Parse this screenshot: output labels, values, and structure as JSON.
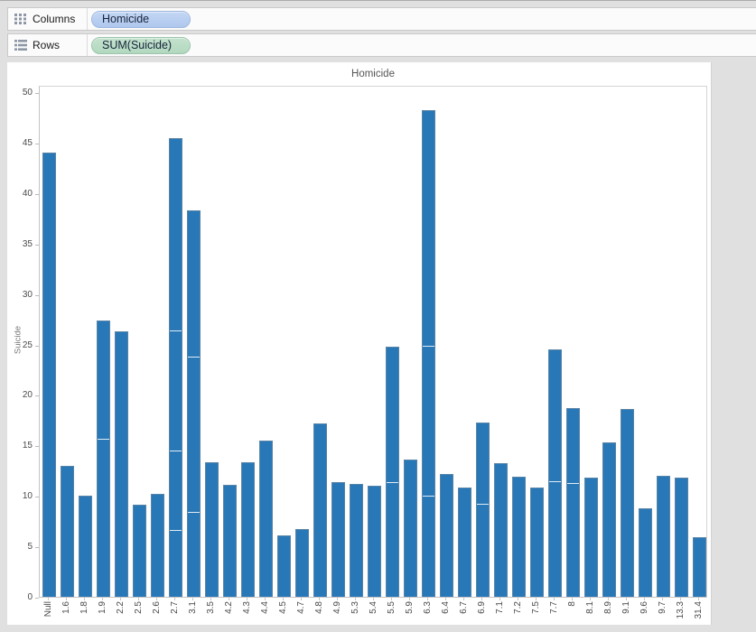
{
  "shelves": {
    "columns": {
      "label": "Columns",
      "pill": "Homicide"
    },
    "rows": {
      "label": "Rows",
      "pill": "SUM(Suicide)"
    }
  },
  "colors": {
    "bar": "#2878b8",
    "pill_blue": "#b0c8ee",
    "pill_green": "#b2d8bf",
    "background": "#e0e0e0"
  },
  "chart_data": {
    "type": "bar",
    "title": "Homicide",
    "xlabel": "Homicide",
    "ylabel": "Suicide",
    "ylim": [
      0,
      50
    ],
    "ytick_step": 5,
    "grid": false,
    "legend": "none",
    "categories": [
      "Null",
      "1.6",
      "1.8",
      "1.9",
      "2.2",
      "2.5",
      "2.6",
      "2.7",
      "3.1",
      "3.5",
      "4.2",
      "4.3",
      "4.4",
      "4.5",
      "4.7",
      "4.8",
      "4.9",
      "5.3",
      "5.4",
      "5.5",
      "5.9",
      "6.3",
      "6.4",
      "6.7",
      "6.9",
      "7.1",
      "7.2",
      "7.5",
      "7.7",
      "8",
      "8.1",
      "8.9",
      "9.1",
      "9.6",
      "9.7",
      "13.3",
      "31.4"
    ],
    "values": [
      44.0,
      13.0,
      10.0,
      27.4,
      26.3,
      9.1,
      10.2,
      45.4,
      38.3,
      13.3,
      11.1,
      13.3,
      15.5,
      6.1,
      6.7,
      17.2,
      11.4,
      11.2,
      11.0,
      24.8,
      13.6,
      48.2,
      12.2,
      10.8,
      17.3,
      13.2,
      11.9,
      10.8,
      24.5,
      18.7,
      11.8,
      15.3,
      18.6,
      8.8,
      12.0,
      11.8,
      5.9
    ],
    "segment_dividers_by_index": {
      "3": [
        15.6
      ],
      "7": [
        6.5,
        14.4,
        26.3
      ],
      "8": [
        8.3,
        23.7
      ],
      "19": [
        11.3
      ],
      "21": [
        9.9,
        24.8
      ],
      "24": [
        9.1
      ],
      "28": [
        11.4
      ],
      "29": [
        11.2
      ]
    }
  }
}
